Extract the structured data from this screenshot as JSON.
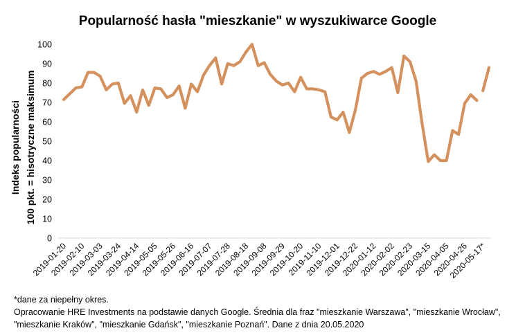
{
  "chart_data": {
    "type": "line",
    "title": "Popularność hasła \"mieszkanie\" w wyszukiwarce Google",
    "ylabel_line1": "Indeks popularności",
    "ylabel_line2": "100 pkt. = hisotryczne maksimum",
    "xlabel": "",
    "ylim": [
      0,
      100
    ],
    "yticks": [
      0,
      10,
      20,
      30,
      40,
      50,
      60,
      70,
      80,
      90,
      100
    ],
    "grid": false,
    "legend": "none",
    "line_color": "#D4915E",
    "xtick_labels": [
      "2019-01-20",
      "2019-02-10",
      "2019-03-03",
      "2019-03-24",
      "2019-04-14",
      "2019-05-05",
      "2019-05-26",
      "2019-06-16",
      "2019-07-07",
      "2019-07-28",
      "2019-08-18",
      "2019-09-08",
      "2019-09-29",
      "2019-10-20",
      "2019-11-10",
      "2019-12-01",
      "2019-12-22",
      "2020-01-12",
      "2020-02-02",
      "2020-02-23",
      "2020-03-15",
      "2020-04-05",
      "2020-04-26",
      "2020-05-17*"
    ],
    "values": [
      71.5,
      74.5,
      77.5,
      78,
      85.5,
      85.5,
      83.5,
      76.5,
      79.5,
      80,
      69.5,
      73.5,
      65,
      76.5,
      68.5,
      77.5,
      77,
      72.5,
      74,
      78.5,
      67,
      79.5,
      75.5,
      84,
      89,
      93,
      79.5,
      90,
      89,
      91,
      96,
      100,
      89,
      90.5,
      84.5,
      81,
      79,
      80,
      75.5,
      83,
      77,
      77,
      76.5,
      75.5,
      62.5,
      61,
      65,
      54.5,
      66,
      82.5,
      85,
      86,
      84.5,
      86,
      88,
      75,
      94,
      91,
      81,
      59,
      39.5,
      43,
      40,
      40,
      55.5,
      53.5,
      69.5,
      74,
      71,
      76,
      88
    ],
    "segment_breaks": [
      68
    ]
  },
  "notes": {
    "line1": "*dane za niepełny okres.",
    "line2": "Opracowanie HRE Investments na podstawie danych Google. Średnia dla fraz \"mieszkanie Warszawa\", \"mieszkanie Wrocław\", \"mieszkanie Kraków\", \"mieszkanie Gdańsk\", \"mieszkanie Poznań\". Dane z dnia 20.05.2020"
  }
}
